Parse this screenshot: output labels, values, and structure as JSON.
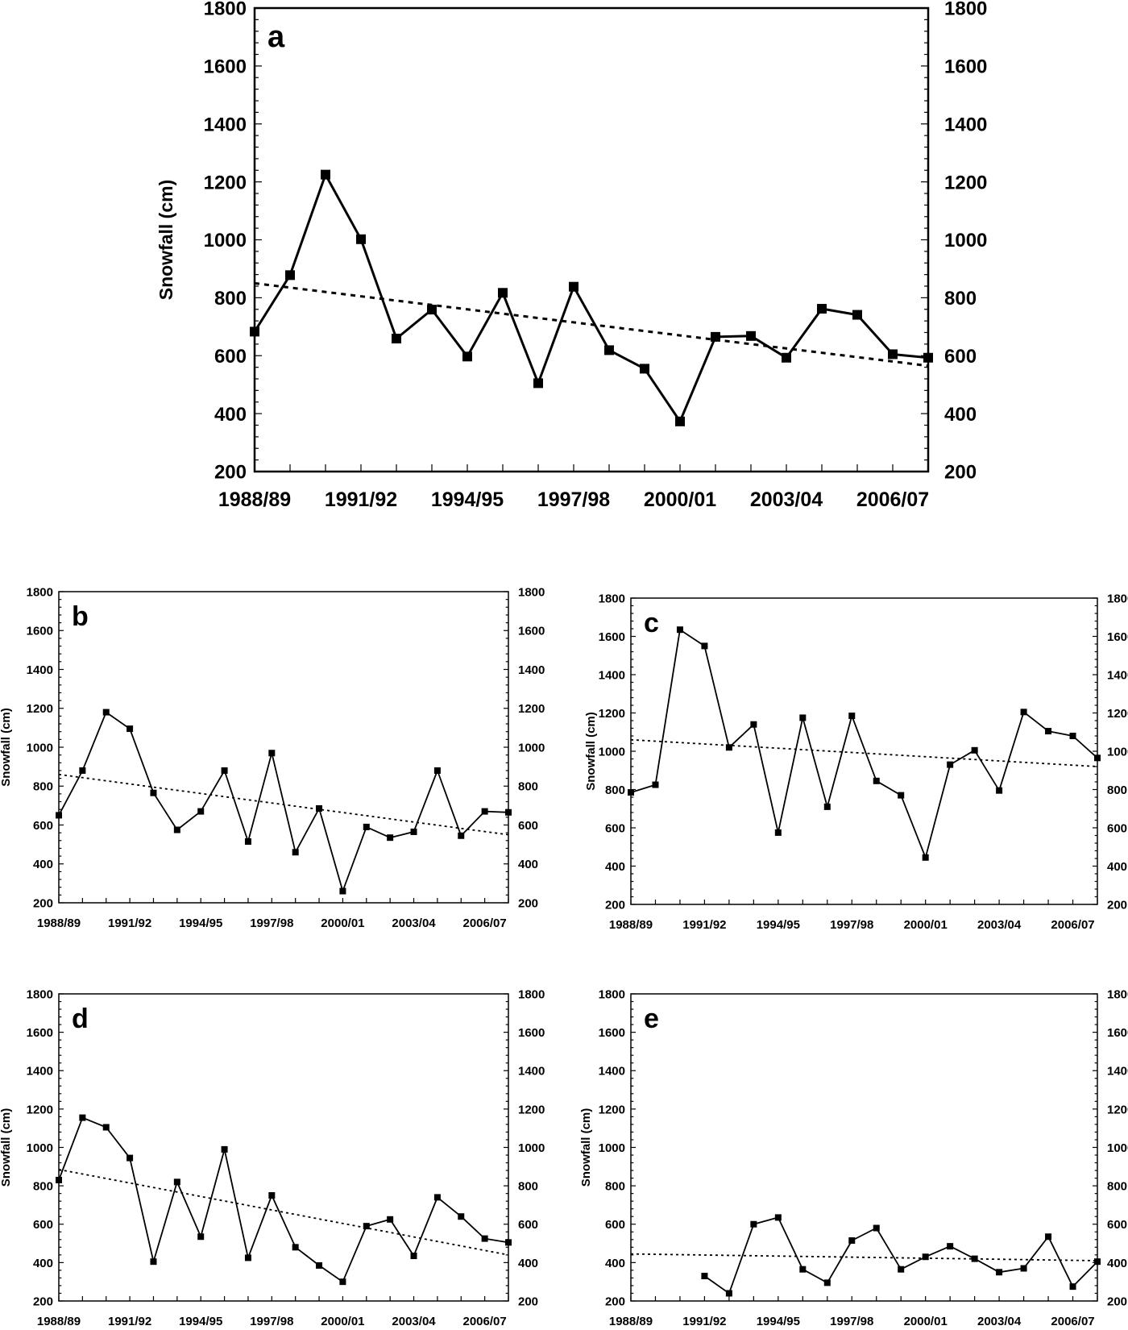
{
  "chart_data": [
    {
      "type": "line",
      "panel_label": "a",
      "ylabel": "Snowfall (cm)",
      "ylim": [
        200,
        1800
      ],
      "yticks": [
        "200",
        "400",
        "600",
        "800",
        "1000",
        "1200",
        "1400",
        "1600",
        "1800"
      ],
      "x": [
        "1988/89",
        "1989/90",
        "1990/91",
        "1991/92",
        "1992/93",
        "1993/94",
        "1994/95",
        "1995/96",
        "1996/97",
        "1997/98",
        "1998/99",
        "1999/00",
        "2000/01",
        "2001/02",
        "2002/03",
        "2003/04",
        "2004/05",
        "2005/06",
        "2006/07",
        "2007/08"
      ],
      "xtick_labels": [
        "1988/89",
        "1991/92",
        "1994/95",
        "1997/98",
        "2000/01",
        "2003/04",
        "2006/07"
      ],
      "values": [
        683,
        878,
        1225,
        1002,
        659,
        759,
        597,
        817,
        505,
        838,
        619,
        555,
        373,
        665,
        668,
        593,
        762,
        741,
        605,
        593
      ],
      "trend": [
        850,
        565
      ],
      "right_axis": true,
      "grid": false
    },
    {
      "type": "line",
      "panel_label": "b",
      "ylabel": "Snowfall (cm)",
      "ylim": [
        200,
        1800
      ],
      "yticks": [
        "200",
        "400",
        "600",
        "800",
        "1000",
        "1200",
        "1400",
        "1600",
        "1800"
      ],
      "x": [
        "1988/89",
        "1989/90",
        "1990/91",
        "1991/92",
        "1992/93",
        "1993/94",
        "1994/95",
        "1995/96",
        "1996/97",
        "1997/98",
        "1998/99",
        "1999/00",
        "2000/01",
        "2001/02",
        "2002/03",
        "2003/04",
        "2004/05",
        "2005/06",
        "2006/07",
        "2007/08"
      ],
      "xtick_labels": [
        "1988/89",
        "1991/92",
        "1994/95",
        "1997/98",
        "2000/01",
        "2003/04",
        "2006/07"
      ],
      "values": [
        650,
        880,
        1180,
        1095,
        765,
        575,
        670,
        880,
        515,
        970,
        460,
        685,
        260,
        590,
        535,
        565,
        880,
        545,
        670,
        665
      ],
      "trend": [
        860,
        550
      ],
      "right_axis": true,
      "grid": false
    },
    {
      "type": "line",
      "panel_label": "c",
      "ylabel": "Snowfall (cm)",
      "ylim": [
        200,
        1800
      ],
      "yticks": [
        "200",
        "400",
        "600",
        "800",
        "1000",
        "1200",
        "1400",
        "1600",
        "1800"
      ],
      "x": [
        "1988/89",
        "1989/90",
        "1990/91",
        "1991/92",
        "1992/93",
        "1993/94",
        "1994/95",
        "1995/96",
        "1996/97",
        "1997/98",
        "1998/99",
        "1999/00",
        "2000/01",
        "2001/02",
        "2002/03",
        "2003/04",
        "2004/05",
        "2005/06",
        "2006/07",
        "2007/08"
      ],
      "xtick_labels": [
        "1988/89",
        "1991/92",
        "1994/95",
        "1997/98",
        "2000/01",
        "2003/04",
        "2006/07"
      ],
      "values": [
        785,
        825,
        1635,
        1550,
        1020,
        1140,
        575,
        1175,
        710,
        1185,
        845,
        770,
        445,
        930,
        1005,
        795,
        1205,
        1105,
        1080,
        965
      ],
      "trend": [
        1060,
        920
      ],
      "right_axis": true,
      "grid": false
    },
    {
      "type": "line",
      "panel_label": "d",
      "ylabel": "Snowfall (cm)",
      "ylim": [
        200,
        1800
      ],
      "yticks": [
        "200",
        "400",
        "600",
        "800",
        "1000",
        "1200",
        "1400",
        "1600",
        "1800"
      ],
      "x": [
        "1988/89",
        "1989/90",
        "1990/91",
        "1991/92",
        "1992/93",
        "1993/94",
        "1994/95",
        "1995/96",
        "1996/97",
        "1997/98",
        "1998/99",
        "1999/00",
        "2000/01",
        "2001/02",
        "2002/03",
        "2003/04",
        "2004/05",
        "2005/06",
        "2006/07",
        "2007/08"
      ],
      "xtick_labels": [
        "1988/89",
        "1991/92",
        "1994/95",
        "1997/98",
        "2000/01",
        "2003/04",
        "2006/07"
      ],
      "values": [
        830,
        1155,
        1105,
        945,
        405,
        820,
        535,
        990,
        425,
        750,
        480,
        385,
        300,
        590,
        625,
        435,
        740,
        640,
        525,
        505
      ],
      "trend": [
        885,
        440
      ],
      "right_axis": true,
      "grid": false
    },
    {
      "type": "line",
      "panel_label": "e",
      "ylabel": "Snowfall (cm)",
      "ylim": [
        200,
        1800
      ],
      "yticks": [
        "200",
        "400",
        "600",
        "800",
        "1000",
        "1200",
        "1400",
        "1600",
        "1800"
      ],
      "x": [
        "1988/89",
        "1989/90",
        "1990/91",
        "1991/92",
        "1992/93",
        "1993/94",
        "1994/95",
        "1995/96",
        "1996/97",
        "1997/98",
        "1998/99",
        "1999/00",
        "2000/01",
        "2001/02",
        "2002/03",
        "2003/04",
        "2004/05",
        "2005/06",
        "2006/07",
        "2007/08"
      ],
      "xtick_labels": [
        "1988/89",
        "1991/92",
        "1994/95",
        "1997/98",
        "2000/01",
        "2003/04",
        "2006/07"
      ],
      "values": [
        null,
        null,
        null,
        330,
        240,
        600,
        635,
        365,
        295,
        515,
        580,
        365,
        430,
        485,
        420,
        350,
        370,
        535,
        275,
        405
      ],
      "trend": [
        445,
        410
      ],
      "right_axis": true,
      "grid": false
    }
  ]
}
